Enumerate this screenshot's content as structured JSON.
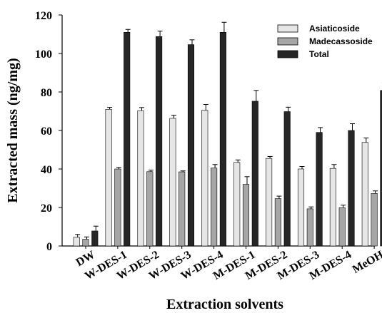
{
  "chart_data": {
    "type": "bar",
    "xlabel": "Extraction solvents",
    "ylabel": "Extracted mass (ng/mg)",
    "ylim": [
      0,
      120
    ],
    "yticks": [
      "0",
      "20",
      "40",
      "60",
      "80",
      "100",
      "120"
    ],
    "grid": false,
    "legend_position": "top-right",
    "categories": [
      "DW",
      "W-DES-1",
      "W-DES-2",
      "W-DES-3",
      "W-DES-4",
      "M-DES-1",
      "M-DES-2",
      "M-DES-3",
      "M-DES-4",
      "MeOH"
    ],
    "series": [
      {
        "name": "Asiaticoside",
        "color": "#e6e6e6",
        "values": [
          4.5,
          71,
          70.3,
          66.3,
          70.5,
          43.4,
          45.5,
          40,
          40.3,
          53.8
        ],
        "errors": [
          1.5,
          1,
          1.6,
          1.6,
          3,
          1.3,
          1,
          1.3,
          2,
          2.3
        ]
      },
      {
        "name": "Madecassoside",
        "color": "#a6a6a6",
        "values": [
          3.5,
          40,
          38.6,
          38.5,
          40.5,
          32,
          24.6,
          19.3,
          19.9,
          27.3
        ],
        "errors": [
          1.2,
          0.8,
          0.8,
          0.5,
          1.8,
          4,
          1.3,
          1,
          1.3,
          1.3
        ]
      },
      {
        "name": "Total",
        "color": "#262626",
        "values": [
          7.8,
          111,
          108.8,
          104.6,
          111,
          75.2,
          69.8,
          59,
          60,
          80.8
        ],
        "errors": [
          2.5,
          1.5,
          2.8,
          2.5,
          5.2,
          5.6,
          2.3,
          2.5,
          3.5,
          4
        ]
      }
    ]
  }
}
